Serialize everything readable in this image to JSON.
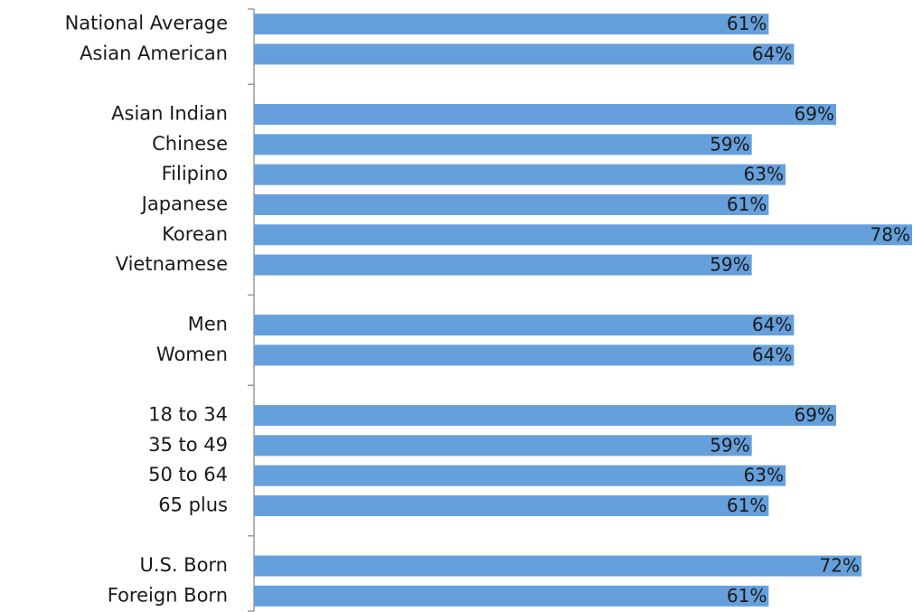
{
  "chart_data": {
    "type": "bar",
    "orientation": "horizontal",
    "color": "#65a0dc",
    "categories": [
      "National Average",
      "Asian American",
      null,
      "Asian Indian",
      "Chinese",
      "Filipino",
      "Japanese",
      "Korean",
      "Vietnamese",
      null,
      "Men",
      "Women",
      null,
      "18 to 34",
      "35 to 49",
      "50 to 64",
      "65 plus",
      null,
      "U.S. Born",
      "Foreign Born"
    ],
    "values": [
      61,
      64,
      null,
      69,
      59,
      63,
      61,
      78,
      59,
      null,
      64,
      64,
      null,
      69,
      59,
      63,
      61,
      null,
      72,
      61
    ],
    "value_labels": [
      "61%",
      "64%",
      null,
      "69%",
      "59%",
      "63%",
      "61%",
      "78%",
      "59%",
      null,
      "64%",
      "64%",
      null,
      "69%",
      "59%",
      "63%",
      "61%",
      null,
      "72%",
      "61%"
    ]
  }
}
